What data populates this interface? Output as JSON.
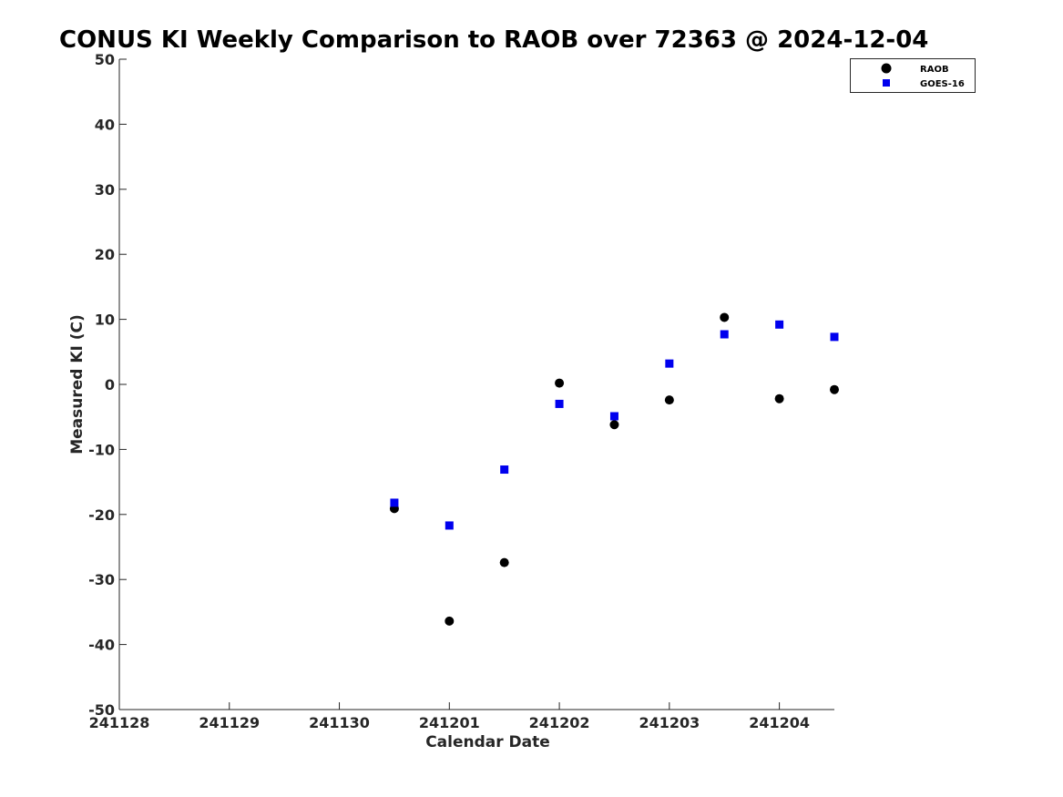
{
  "chart_data": {
    "type": "scatter",
    "title": "CONUS KI Weekly Comparison to RAOB over 72363 @ 2024-12-04",
    "xlabel": "Calendar Date",
    "ylabel": "Measured KI (C)",
    "xlim": [
      "241128",
      "241204.5"
    ],
    "ylim": [
      -50,
      50
    ],
    "x_ticks": [
      "241128",
      "241129",
      "241130",
      "241201",
      "241202",
      "241203",
      "241204"
    ],
    "y_ticks": [
      50,
      40,
      30,
      20,
      10,
      0,
      -10,
      -20,
      -30,
      -40,
      -50
    ],
    "grid": false,
    "legend_position": "top-right",
    "series": [
      {
        "name": "RAOB",
        "marker": "circle",
        "color": "#000000",
        "points": [
          {
            "x": 2.5,
            "y": -19.1
          },
          {
            "x": 3.0,
            "y": -36.4
          },
          {
            "x": 3.5,
            "y": -27.4
          },
          {
            "x": 4.0,
            "y": 0.2
          },
          {
            "x": 4.5,
            "y": -6.2
          },
          {
            "x": 5.0,
            "y": -2.4
          },
          {
            "x": 5.5,
            "y": 10.3
          },
          {
            "x": 6.0,
            "y": -2.2
          },
          {
            "x": 6.5,
            "y": -0.8
          }
        ]
      },
      {
        "name": "GOES-16",
        "marker": "square",
        "color": "#0000ee",
        "points": [
          {
            "x": 2.5,
            "y": -18.2
          },
          {
            "x": 3.0,
            "y": -21.7
          },
          {
            "x": 3.5,
            "y": -13.1
          },
          {
            "x": 4.0,
            "y": -3.0
          },
          {
            "x": 4.5,
            "y": -4.9
          },
          {
            "x": 5.0,
            "y": 3.2
          },
          {
            "x": 5.5,
            "y": 7.7
          },
          {
            "x": 6.0,
            "y": 9.2
          },
          {
            "x": 6.5,
            "y": 7.3
          }
        ]
      }
    ]
  }
}
